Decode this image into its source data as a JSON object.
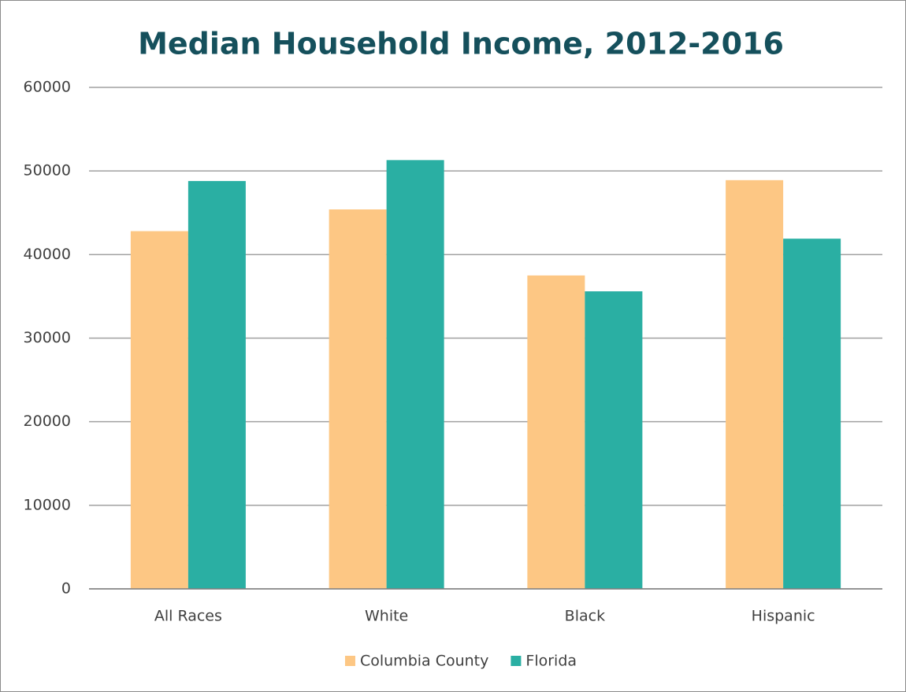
{
  "chart_data": {
    "type": "bar",
    "title": "Median Household Income, 2012-2016",
    "categories": [
      "All Races",
      "White",
      "Black",
      "Hispanic"
    ],
    "series": [
      {
        "name": "Columbia County",
        "color": "#fdc784",
        "values": [
          42800,
          45400,
          37500,
          48900
        ]
      },
      {
        "name": "Florida",
        "color": "#2aafa3",
        "values": [
          48800,
          51300,
          35600,
          41900
        ]
      }
    ],
    "ylim": [
      0,
      60000
    ],
    "yticks": [
      0,
      10000,
      20000,
      30000,
      40000,
      50000,
      60000
    ],
    "grid": true,
    "legend": "bottom"
  }
}
